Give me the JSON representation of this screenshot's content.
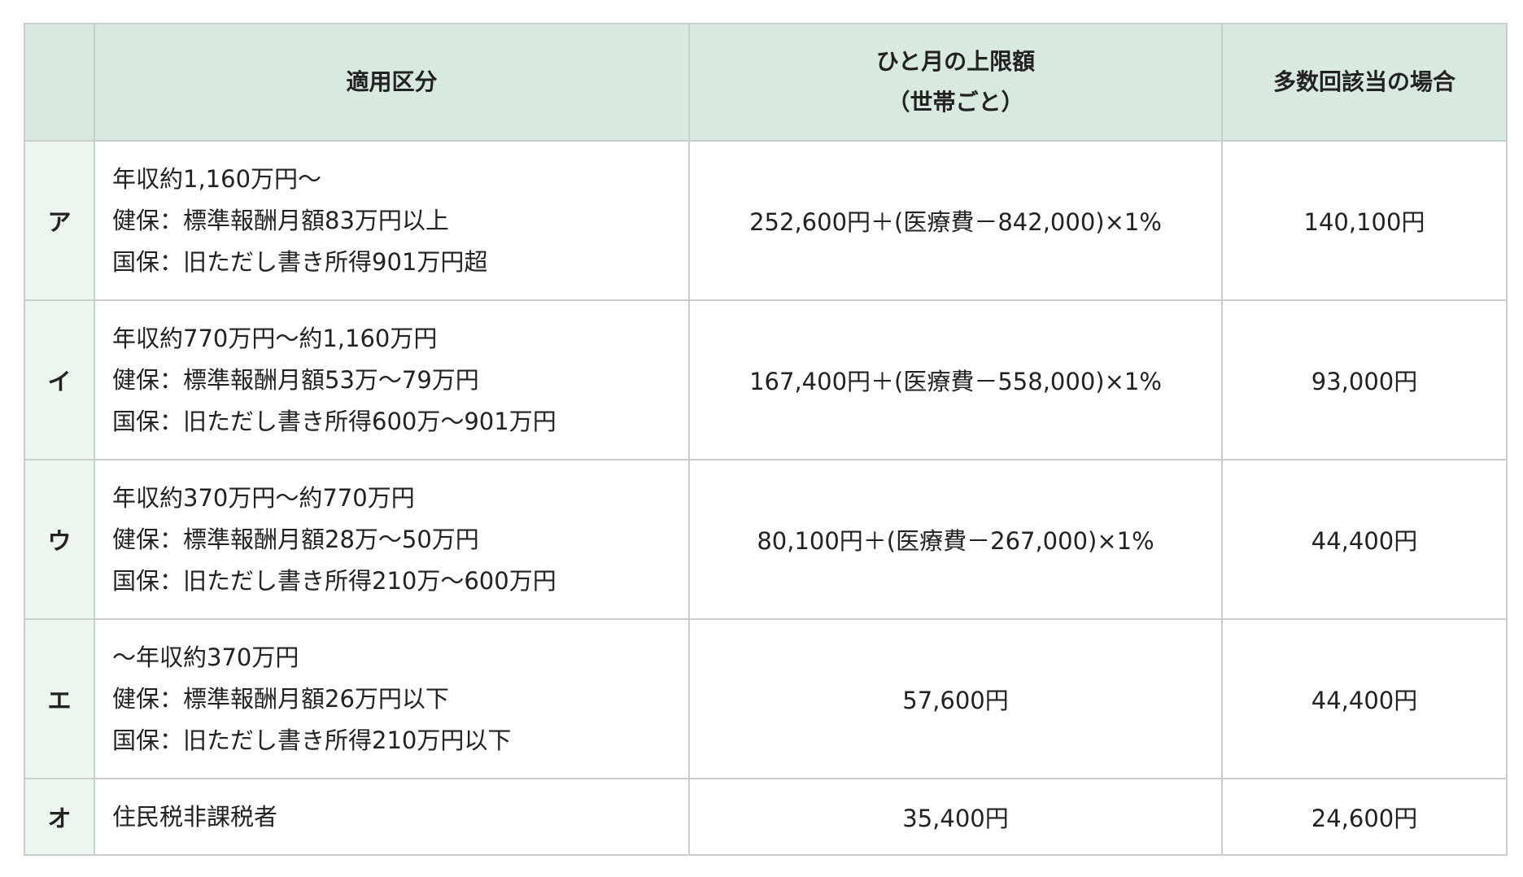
{
  "table": {
    "headers": {
      "corner": "",
      "category": "適用区分",
      "monthly_limit_line1": "ひと月の上限額",
      "monthly_limit_line2": "（世帯ごと）",
      "multiple": "多数回該当の場合"
    },
    "rows": [
      {
        "label": "ア",
        "category_lines": [
          "年収約1,160万円～",
          "健保：標準報酬月額83万円以上",
          "国保：旧ただし書き所得901万円超"
        ],
        "monthly_limit": "252,600円＋(医療費－842,000)×1%",
        "multiple": "140,100円"
      },
      {
        "label": "イ",
        "category_lines": [
          "年収約770万円～約1,160万円",
          "健保：標準報酬月額53万～79万円",
          "国保：旧ただし書き所得600万～901万円"
        ],
        "monthly_limit": "167,400円＋(医療費－558,000)×1%",
        "multiple": "93,000円"
      },
      {
        "label": "ウ",
        "category_lines": [
          "年収約370万円～約770万円",
          "健保：標準報酬月額28万～50万円",
          "国保：旧ただし書き所得210万～600万円"
        ],
        "monthly_limit": "80,100円＋(医療費－267,000)×1%",
        "multiple": "44,400円"
      },
      {
        "label": "エ",
        "category_lines": [
          "～年収約370万円",
          "健保：標準報酬月額26万円以下",
          "国保：旧ただし書き所得210万円以下"
        ],
        "monthly_limit": "57,600円",
        "multiple": "44,400円"
      },
      {
        "label": "オ",
        "category_lines": [
          "住民税非課税者"
        ],
        "monthly_limit": "35,400円",
        "multiple": "24,600円"
      }
    ]
  },
  "colors": {
    "header_bg": "#d8eadf",
    "label_bg": "#edf5ef",
    "border": "#c8cfca"
  }
}
